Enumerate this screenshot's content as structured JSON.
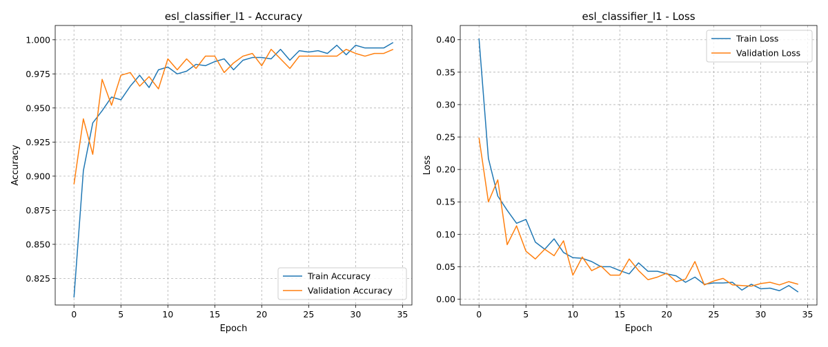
{
  "colors": {
    "train": "#1f77b4",
    "validation": "#ff7f0e"
  },
  "chart_data": [
    {
      "type": "line",
      "title": "esl_classifier_l1 - Accuracy",
      "xlabel": "Epoch",
      "ylabel": "Accuracy",
      "xlim": [
        -2,
        36
      ],
      "ylim": [
        0.8055,
        1.0105
      ],
      "xticks": [
        0,
        5,
        10,
        15,
        20,
        25,
        30,
        35
      ],
      "yticks": [
        0.825,
        0.85,
        0.875,
        0.9,
        0.925,
        0.95,
        0.975,
        1.0
      ],
      "ytick_labels": [
        "0.825",
        "0.850",
        "0.875",
        "0.900",
        "0.925",
        "0.950",
        "0.975",
        "1.000"
      ],
      "grid": true,
      "legend_position": "lower right",
      "x": [
        0,
        1,
        2,
        3,
        4,
        5,
        6,
        7,
        8,
        9,
        10,
        11,
        12,
        13,
        14,
        15,
        16,
        17,
        18,
        19,
        20,
        21,
        22,
        23,
        24,
        25,
        26,
        27,
        28,
        29,
        30,
        31,
        32,
        33,
        34
      ],
      "series": [
        {
          "name": "Train Accuracy",
          "color": "#1f77b4",
          "values": [
            0.811,
            0.904,
            0.939,
            0.948,
            0.958,
            0.956,
            0.966,
            0.974,
            0.965,
            0.978,
            0.98,
            0.975,
            0.977,
            0.982,
            0.981,
            0.984,
            0.986,
            0.978,
            0.985,
            0.987,
            0.987,
            0.986,
            0.993,
            0.985,
            0.992,
            0.991,
            0.992,
            0.99,
            0.996,
            0.989,
            0.996,
            0.994,
            0.994,
            0.994,
            0.998
          ]
        },
        {
          "name": "Validation Accuracy",
          "color": "#ff7f0e",
          "values": [
            0.894,
            0.942,
            0.916,
            0.971,
            0.952,
            0.974,
            0.976,
            0.966,
            0.973,
            0.964,
            0.986,
            0.978,
            0.986,
            0.979,
            0.988,
            0.988,
            0.976,
            0.983,
            0.988,
            0.99,
            0.981,
            0.993,
            0.986,
            0.979,
            0.988,
            0.988,
            0.988,
            0.988,
            0.988,
            0.993,
            0.99,
            0.988,
            0.99,
            0.99,
            0.993
          ]
        }
      ]
    },
    {
      "type": "line",
      "title": "esl_classifier_l1 - Loss",
      "xlabel": "Epoch",
      "ylabel": "Loss",
      "xlim": [
        -2,
        36
      ],
      "ylim": [
        -0.009,
        0.422
      ],
      "xticks": [
        0,
        5,
        10,
        15,
        20,
        25,
        30,
        35
      ],
      "yticks": [
        0.0,
        0.05,
        0.1,
        0.15,
        0.2,
        0.25,
        0.3,
        0.35,
        0.4
      ],
      "ytick_labels": [
        "0.00",
        "0.05",
        "0.10",
        "0.15",
        "0.20",
        "0.25",
        "0.30",
        "0.35",
        "0.40"
      ],
      "grid": true,
      "legend_position": "upper right",
      "x": [
        0,
        1,
        2,
        3,
        4,
        5,
        6,
        7,
        8,
        9,
        10,
        11,
        12,
        13,
        14,
        15,
        16,
        17,
        18,
        19,
        20,
        21,
        22,
        23,
        24,
        25,
        26,
        27,
        28,
        29,
        30,
        31,
        32,
        33,
        34
      ],
      "series": [
        {
          "name": "Train Loss",
          "color": "#1f77b4",
          "values": [
            0.402,
            0.217,
            0.159,
            0.137,
            0.117,
            0.123,
            0.088,
            0.077,
            0.093,
            0.072,
            0.064,
            0.063,
            0.058,
            0.05,
            0.05,
            0.044,
            0.039,
            0.056,
            0.043,
            0.043,
            0.039,
            0.036,
            0.026,
            0.034,
            0.023,
            0.025,
            0.025,
            0.026,
            0.014,
            0.023,
            0.016,
            0.017,
            0.013,
            0.021,
            0.011
          ]
        },
        {
          "name": "Validation Loss",
          "color": "#ff7f0e",
          "values": [
            0.249,
            0.15,
            0.184,
            0.084,
            0.113,
            0.074,
            0.062,
            0.077,
            0.067,
            0.09,
            0.037,
            0.065,
            0.044,
            0.051,
            0.037,
            0.037,
            0.062,
            0.044,
            0.03,
            0.034,
            0.04,
            0.027,
            0.031,
            0.058,
            0.022,
            0.028,
            0.032,
            0.022,
            0.021,
            0.02,
            0.024,
            0.026,
            0.022,
            0.027,
            0.023
          ]
        }
      ]
    }
  ]
}
